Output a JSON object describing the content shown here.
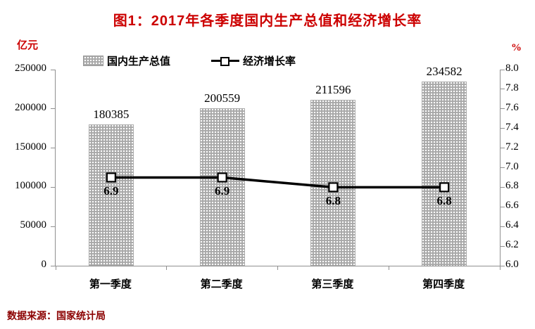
{
  "title": "图1：2017年各季度国内生产总值和经济增长率",
  "footer": "数据来源：国家统计局",
  "colors": {
    "title_red": "#cc0000",
    "footer_red": "#8b0000",
    "bar_fill": "#a8a8a8",
    "line_color": "#000000",
    "axis_color": "#909090"
  },
  "chart_data": {
    "type": "bar+line",
    "title": "图1：2017年各季度国内生产总值和经济增长率",
    "categories": [
      "第一季度",
      "第二季度",
      "第三季度",
      "第四季度"
    ],
    "series": [
      {
        "name": "国内生产总值",
        "type": "bar",
        "axis": "left",
        "values": [
          180385,
          200559,
          211596,
          234582
        ],
        "value_labels": [
          "180385",
          "200559",
          "211596",
          "234582"
        ]
      },
      {
        "name": "经济增长率",
        "type": "line",
        "axis": "right",
        "values": [
          6.9,
          6.9,
          6.8,
          6.8
        ],
        "value_labels": [
          "6.9",
          "6.9",
          "6.8",
          "6.8"
        ]
      }
    ],
    "left_axis": {
      "unit": "亿元",
      "min": 0,
      "max": 250000,
      "step": 50000,
      "ticks": [
        "0",
        "50000",
        "100000",
        "150000",
        "200000",
        "250000"
      ]
    },
    "right_axis": {
      "unit": "%",
      "min": 6.0,
      "max": 8.0,
      "step": 0.2,
      "ticks": [
        "6.0",
        "6.2",
        "6.4",
        "6.6",
        "6.8",
        "7.0",
        "7.2",
        "7.4",
        "7.6",
        "7.8",
        "8.0"
      ]
    },
    "legend": [
      "国内生产总值",
      "经济增长率"
    ],
    "legend_position": "top",
    "grid": false
  }
}
